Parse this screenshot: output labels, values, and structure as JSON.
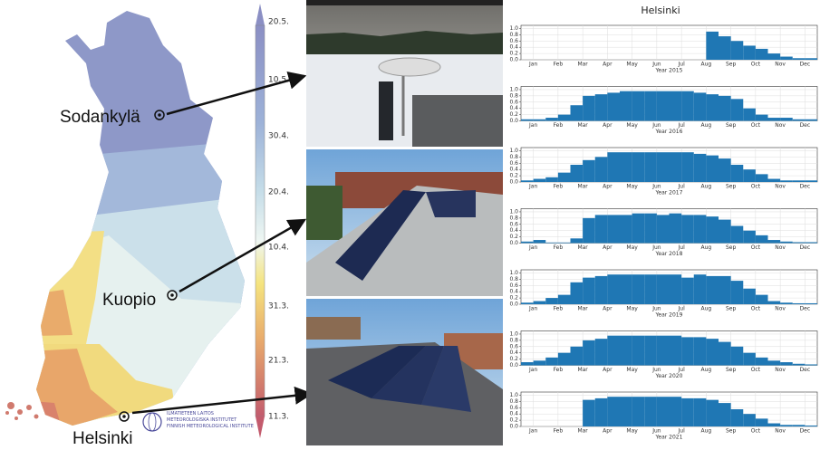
{
  "map": {
    "locations": [
      "Sodankylä",
      "Kuopio",
      "Helsinki"
    ],
    "colorbar_labels": [
      "20.5.",
      "10.5.",
      "30.4.",
      "20.4.",
      "10.4.",
      "31.3.",
      "21.3.",
      "11.3."
    ],
    "logo_lines": [
      "ILMATIETEEN LAITOS",
      "METEOROLOGISKA INSTITUTET",
      "FINNISH METEOROLOGICAL INSTITUTE"
    ]
  },
  "chart_data": [
    {
      "type": "bar",
      "title": "Helsinki",
      "xlabel": "Year 2015",
      "color": "#1f77b4",
      "grid": true,
      "categories": [
        "Jan",
        null,
        "Feb",
        null,
        "Mar",
        null,
        "Apr",
        null,
        "May",
        null,
        "Jun",
        null,
        "Jul",
        null,
        "Aug",
        null,
        "Sep",
        null,
        "Oct",
        null,
        "Nov",
        null,
        "Dec",
        null
      ],
      "values": [
        null,
        null,
        null,
        null,
        null,
        null,
        null,
        null,
        null,
        null,
        null,
        null,
        null,
        null,
        null,
        0.9,
        0.75,
        0.6,
        0.45,
        0.35,
        0.2,
        0.1,
        0.05,
        0.05
      ],
      "ylim": [
        0,
        1.1
      ],
      "yticks": [
        {
          "value": 0,
          "label": "0.0"
        },
        0.2,
        0.4,
        0.6,
        0.8,
        {
          "value": 1,
          "label": "1.0"
        }
      ]
    },
    {
      "type": "bar",
      "xlabel": "Year 2016",
      "color": "#1f77b4",
      "grid": true,
      "categories": [
        "Jan",
        null,
        "Feb",
        null,
        "Mar",
        null,
        "Apr",
        null,
        "May",
        null,
        "Jun",
        null,
        "Jul",
        null,
        "Aug",
        null,
        "Sep",
        null,
        "Oct",
        null,
        "Nov",
        null,
        "Dec",
        null
      ],
      "values": [
        0.05,
        0.05,
        0.1,
        0.2,
        0.5,
        0.8,
        0.85,
        0.9,
        0.95,
        0.95,
        0.95,
        0.95,
        0.95,
        0.95,
        0.9,
        0.85,
        0.8,
        0.7,
        0.4,
        0.2,
        0.1,
        0.1,
        0.05,
        0.05
      ],
      "ylim": [
        0,
        1.1
      ],
      "yticks": [
        {
          "value": 0,
          "label": "0.0"
        },
        0.2,
        0.4,
        0.6,
        0.8,
        {
          "value": 1,
          "label": "1.0"
        }
      ]
    },
    {
      "type": "bar",
      "xlabel": "Year 2017",
      "color": "#1f77b4",
      "grid": true,
      "categories": [
        "Jan",
        null,
        "Feb",
        null,
        "Mar",
        null,
        "Apr",
        null,
        "May",
        null,
        "Jun",
        null,
        "Jul",
        null,
        "Aug",
        null,
        "Sep",
        null,
        "Oct",
        null,
        "Nov",
        null,
        "Dec",
        null
      ],
      "values": [
        0.05,
        0.1,
        0.15,
        0.3,
        0.55,
        0.7,
        0.8,
        0.95,
        0.95,
        0.95,
        0.95,
        0.95,
        0.95,
        0.95,
        0.9,
        0.85,
        0.75,
        0.55,
        0.4,
        0.25,
        0.1,
        0.05,
        0.05,
        0.05
      ],
      "ylim": [
        0,
        1.1
      ],
      "yticks": [
        {
          "value": 0,
          "label": "0.0"
        },
        0.2,
        0.4,
        0.6,
        0.8,
        {
          "value": 1,
          "label": "1.0"
        }
      ]
    },
    {
      "type": "bar",
      "xlabel": "Year 2018",
      "color": "#1f77b4",
      "grid": true,
      "categories": [
        "Jan",
        null,
        "Feb",
        null,
        "Mar",
        null,
        "Apr",
        null,
        "May",
        null,
        "Jun",
        null,
        "Jul",
        null,
        "Aug",
        null,
        "Sep",
        null,
        "Oct",
        null,
        "Nov",
        null,
        "Dec",
        null
      ],
      "values": [
        0.05,
        0.1,
        0.02,
        0.02,
        0.15,
        0.8,
        0.9,
        0.9,
        0.9,
        0.95,
        0.95,
        0.9,
        0.95,
        0.9,
        0.9,
        0.85,
        0.75,
        0.55,
        0.4,
        0.25,
        0.1,
        0.05,
        0.03,
        0.03
      ],
      "ylim": [
        0,
        1.1
      ],
      "yticks": [
        {
          "value": 0,
          "label": "0.0"
        },
        0.2,
        0.4,
        0.6,
        0.8,
        {
          "value": 1,
          "label": "1.0"
        }
      ]
    },
    {
      "type": "bar",
      "xlabel": "Year 2019",
      "color": "#1f77b4",
      "grid": true,
      "categories": [
        "Jan",
        null,
        "Feb",
        null,
        "Mar",
        null,
        "Apr",
        null,
        "May",
        null,
        "Jun",
        null,
        "Jul",
        null,
        "Aug",
        null,
        "Sep",
        null,
        "Oct",
        null,
        "Nov",
        null,
        "Dec",
        null
      ],
      "values": [
        0.05,
        0.1,
        0.2,
        0.3,
        0.7,
        0.85,
        0.9,
        0.95,
        0.95,
        0.95,
        0.95,
        0.95,
        0.95,
        0.85,
        0.95,
        0.9,
        0.9,
        0.75,
        0.5,
        0.3,
        0.1,
        0.05,
        0.03,
        0.03
      ],
      "ylim": [
        0,
        1.1
      ],
      "yticks": [
        {
          "value": 0,
          "label": "0.0"
        },
        0.2,
        0.4,
        0.6,
        0.8,
        {
          "value": 1,
          "label": "1.0"
        }
      ]
    },
    {
      "type": "bar",
      "xlabel": "Year 2020",
      "color": "#1f77b4",
      "grid": true,
      "categories": [
        "Jan",
        null,
        "Feb",
        null,
        "Mar",
        null,
        "Apr",
        null,
        "May",
        null,
        "Jun",
        null,
        "Jul",
        null,
        "Aug",
        null,
        "Sep",
        null,
        "Oct",
        null,
        "Nov",
        null,
        "Dec",
        null
      ],
      "values": [
        0.1,
        0.15,
        0.25,
        0.4,
        0.6,
        0.8,
        0.85,
        0.95,
        0.95,
        0.95,
        0.95,
        0.95,
        0.95,
        0.9,
        0.9,
        0.85,
        0.75,
        0.6,
        0.4,
        0.25,
        0.15,
        0.1,
        0.05,
        0.03
      ],
      "ylim": [
        0,
        1.1
      ],
      "yticks": [
        {
          "value": 0,
          "label": "0.0"
        },
        0.2,
        0.4,
        0.6,
        0.8,
        {
          "value": 1,
          "label": "1.0"
        }
      ]
    },
    {
      "type": "bar",
      "xlabel": "Year 2021",
      "color": "#1f77b4",
      "grid": true,
      "categories": [
        "Jan",
        null,
        "Feb",
        null,
        "Mar",
        null,
        "Apr",
        null,
        "May",
        null,
        "Jun",
        null,
        "Jul",
        null,
        "Aug",
        null,
        "Sep",
        null,
        "Oct",
        null,
        "Nov",
        null,
        "Dec",
        null
      ],
      "values": [
        null,
        null,
        null,
        null,
        null,
        0.85,
        0.9,
        0.95,
        0.95,
        0.95,
        0.95,
        0.95,
        0.95,
        0.9,
        0.9,
        0.85,
        0.75,
        0.55,
        0.4,
        0.25,
        0.1,
        0.05,
        0.05,
        0.03
      ],
      "ylim": [
        0,
        1.1
      ],
      "yticks": [
        {
          "value": 0,
          "label": "0.0"
        },
        0.2,
        0.4,
        0.6,
        0.8,
        {
          "value": 1,
          "label": "1.0"
        }
      ]
    }
  ]
}
